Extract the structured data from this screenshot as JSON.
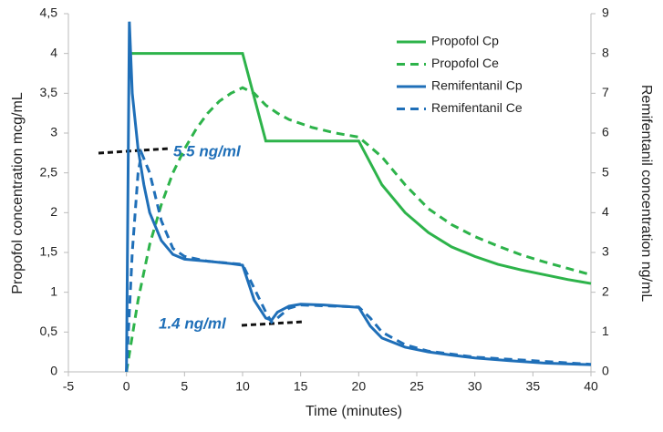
{
  "chart_data": {
    "type": "line",
    "xlabel": "Time (minutes)",
    "ylabel": "Propofol concentration mcg/mL",
    "y2label": "Remifentanil concentration  ng/mL",
    "xlim": [
      -5,
      40
    ],
    "xticks": [
      -5,
      0,
      5,
      10,
      15,
      20,
      25,
      30,
      35,
      40
    ],
    "ylim": [
      0,
      4.5
    ],
    "yticks": [
      0,
      {
        "value": 0.5,
        "label": "0,5"
      },
      1,
      {
        "value": 1.5,
        "label": "1,5"
      },
      2,
      {
        "value": 2.5,
        "label": "2,5"
      },
      3,
      {
        "value": 3.5,
        "label": "3,5"
      },
      4,
      {
        "value": 4.5,
        "label": "4,5"
      }
    ],
    "y2lim": [
      0,
      9
    ],
    "y2ticks": [
      0,
      1,
      2,
      3,
      4,
      5,
      6,
      7,
      8,
      9
    ],
    "grid": false,
    "legend": "upper right",
    "annotations": [
      {
        "text": "5.5 ng/ml"
      },
      {
        "text": "1.4 ng/ml"
      }
    ],
    "series": [
      {
        "name": "Propofol Cp",
        "color": "#2db34a",
        "style": "solid",
        "axis": "y",
        "x": [
          0.3,
          10,
          12,
          20,
          22,
          24,
          26,
          28,
          30,
          32,
          34,
          36,
          38,
          40
        ],
        "values": [
          4,
          4,
          2.9,
          2.9,
          2.35,
          2.0,
          1.75,
          1.57,
          1.45,
          1.35,
          1.28,
          1.22,
          1.16,
          1.11
        ]
      },
      {
        "name": "Propofol Ce",
        "color": "#2db34a",
        "style": "dashed",
        "axis": "y",
        "x": [
          0,
          1,
          2,
          3,
          4,
          5,
          6,
          7,
          8,
          9,
          10,
          11,
          12,
          13,
          14,
          16,
          18,
          20,
          22,
          24,
          26,
          28,
          30,
          32,
          34,
          36,
          38,
          40
        ],
        "values": [
          0,
          0.9,
          1.6,
          2.1,
          2.5,
          2.8,
          3.05,
          3.25,
          3.4,
          3.5,
          3.57,
          3.5,
          3.35,
          3.25,
          3.17,
          3.07,
          3.0,
          2.95,
          2.7,
          2.35,
          2.05,
          1.85,
          1.7,
          1.58,
          1.47,
          1.38,
          1.3,
          1.22
        ]
      },
      {
        "name": "Remifentanil Cp",
        "color": "#1f6fb8",
        "style": "solid",
        "axis": "y2",
        "x": [
          0,
          0.25,
          0.5,
          1,
          1.5,
          2,
          3,
          4,
          5,
          7,
          9,
          10,
          11,
          12,
          12.5,
          13,
          14,
          15,
          17,
          20,
          21,
          22,
          24,
          26,
          28,
          30,
          33,
          36,
          40
        ],
        "values": [
          0,
          8.8,
          7,
          5.6,
          4.7,
          4.0,
          3.3,
          2.95,
          2.83,
          2.78,
          2.72,
          2.68,
          1.8,
          1.35,
          1.3,
          1.5,
          1.65,
          1.7,
          1.68,
          1.62,
          1.15,
          0.85,
          0.62,
          0.5,
          0.42,
          0.35,
          0.28,
          0.22,
          0.18
        ]
      },
      {
        "name": "Remifentanil Ce",
        "color": "#1f6fb8",
        "style": "dashed",
        "axis": "y2",
        "x": [
          0,
          0.5,
          1,
          1.3,
          2,
          3,
          4,
          5,
          7,
          10,
          11,
          12,
          12.5,
          13,
          14,
          15,
          20,
          21,
          22,
          24,
          26,
          30,
          40
        ],
        "values": [
          0,
          3,
          5.0,
          5.5,
          5.0,
          3.8,
          3.1,
          2.9,
          2.78,
          2.7,
          2.1,
          1.5,
          1.25,
          1.35,
          1.6,
          1.68,
          1.63,
          1.35,
          1.0,
          0.68,
          0.52,
          0.37,
          0.19
        ]
      }
    ]
  }
}
